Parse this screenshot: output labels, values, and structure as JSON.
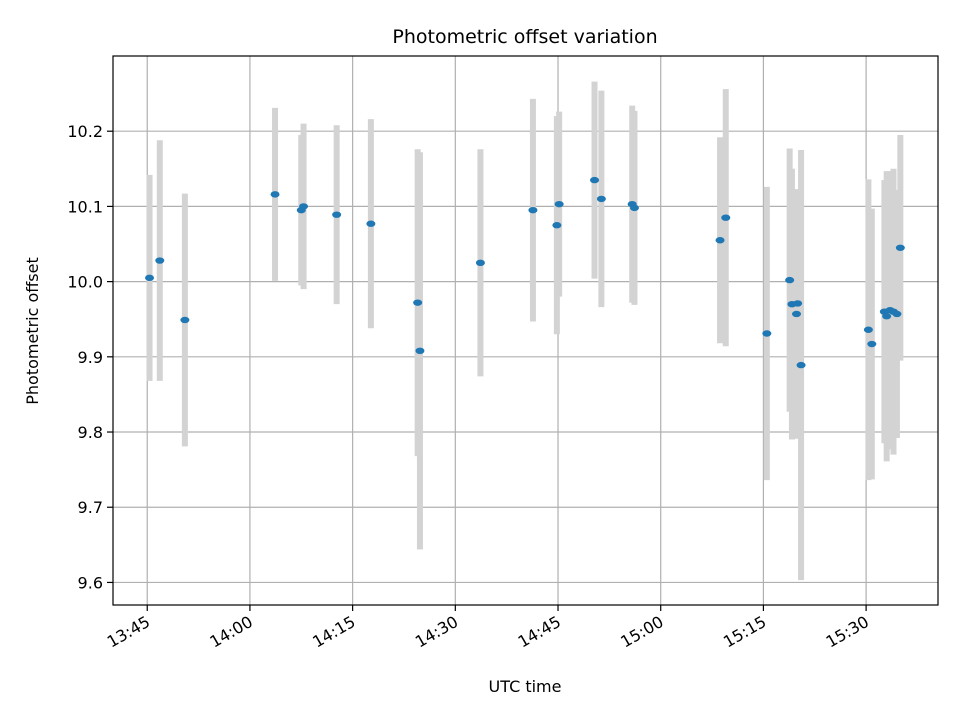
{
  "chart_data": {
    "type": "scatter",
    "title": "Photometric offset variation",
    "xlabel": "UTC time",
    "ylabel": "Photometric offset",
    "x_ticks": [
      "13:45",
      "14:00",
      "14:15",
      "14:30",
      "14:45",
      "15:00",
      "15:15",
      "15:30"
    ],
    "y_ticks": [
      "9.6",
      "9.7",
      "9.8",
      "9.9",
      "10.0",
      "10.1",
      "10.2"
    ],
    "xlim": [
      "13:40:00",
      "15:40:30"
    ],
    "ylim": [
      9.57,
      10.3
    ],
    "grid": true,
    "colors": {
      "point": "#1f77b4",
      "errorbar": "#d3d3d3",
      "grid": "#b0b0b0"
    },
    "points": [
      {
        "x": "13:45:20",
        "y": 10.005,
        "err": 0.137
      },
      {
        "x": "13:46:50",
        "y": 10.028,
        "err": 0.16
      },
      {
        "x": "13:50:30",
        "y": 9.949,
        "err": 0.168
      },
      {
        "x": "14:03:40",
        "y": 10.116,
        "err": 0.115
      },
      {
        "x": "14:07:30",
        "y": 10.095,
        "err": 0.1
      },
      {
        "x": "14:07:50",
        "y": 10.1,
        "err": 0.11
      },
      {
        "x": "14:12:40",
        "y": 10.089,
        "err": 0.119
      },
      {
        "x": "14:17:40",
        "y": 10.077,
        "err": 0.139
      },
      {
        "x": "14:24:30",
        "y": 9.972,
        "err": 0.204
      },
      {
        "x": "14:24:50",
        "y": 9.908,
        "err": 0.264
      },
      {
        "x": "14:33:40",
        "y": 10.025,
        "err": 0.151
      },
      {
        "x": "14:41:20",
        "y": 10.095,
        "err": 0.148
      },
      {
        "x": "14:44:50",
        "y": 10.075,
        "err": 0.145
      },
      {
        "x": "14:45:10",
        "y": 10.103,
        "err": 0.123
      },
      {
        "x": "14:50:20",
        "y": 10.135,
        "err": 0.131
      },
      {
        "x": "14:51:20",
        "y": 10.11,
        "err": 0.144
      },
      {
        "x": "14:55:50",
        "y": 10.103,
        "err": 0.131
      },
      {
        "x": "14:56:10",
        "y": 10.098,
        "err": 0.129
      },
      {
        "x": "15:08:40",
        "y": 10.055,
        "err": 0.137
      },
      {
        "x": "15:09:30",
        "y": 10.085,
        "err": 0.171
      },
      {
        "x": "15:15:30",
        "y": 9.931,
        "err": 0.195
      },
      {
        "x": "15:18:50",
        "y": 10.002,
        "err": 0.175
      },
      {
        "x": "15:19:10",
        "y": 9.97,
        "err": 0.18
      },
      {
        "x": "15:19:50",
        "y": 9.957,
        "err": 0.166
      },
      {
        "x": "15:20:00",
        "y": 9.971,
        "err": 0.15
      },
      {
        "x": "15:20:30",
        "y": 9.889,
        "err": 0.286
      },
      {
        "x": "15:30:20",
        "y": 9.936,
        "err": 0.2
      },
      {
        "x": "15:30:50",
        "y": 9.917,
        "err": 0.18
      },
      {
        "x": "15:32:40",
        "y": 9.96,
        "err": 0.175
      },
      {
        "x": "15:33:00",
        "y": 9.954,
        "err": 0.193
      },
      {
        "x": "15:33:30",
        "y": 9.962,
        "err": 0.185
      },
      {
        "x": "15:34:00",
        "y": 9.96,
        "err": 0.19
      },
      {
        "x": "15:34:30",
        "y": 9.957,
        "err": 0.165
      },
      {
        "x": "15:35:00",
        "y": 10.045,
        "err": 0.15
      }
    ]
  }
}
